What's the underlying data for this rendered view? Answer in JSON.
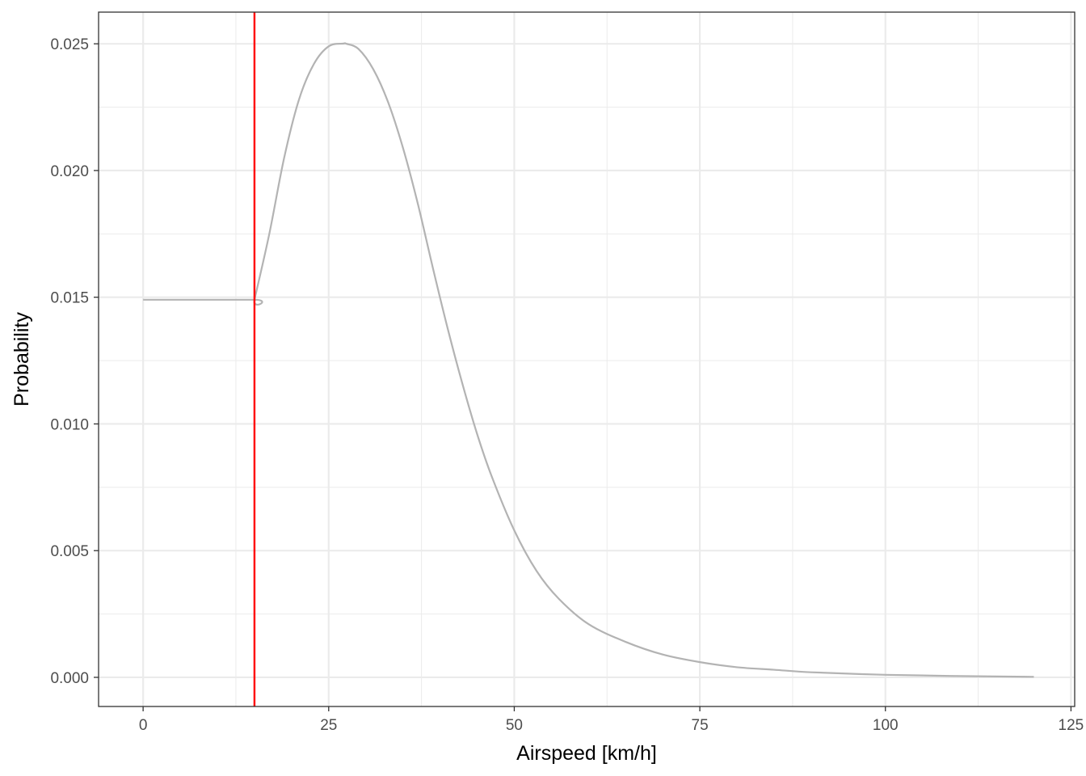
{
  "chart_data": {
    "type": "line",
    "xlabel": "Airspeed [km/h]",
    "ylabel": "Probability",
    "xlim": [
      -6,
      125.5
    ],
    "ylim": [
      -0.00115,
      0.02625
    ],
    "x_ticks": [
      0,
      25,
      50,
      75,
      100,
      125
    ],
    "x_tick_labels": [
      "0",
      "25",
      "50",
      "75",
      "100",
      "125"
    ],
    "y_ticks": [
      0.0,
      0.005,
      0.01,
      0.015,
      0.02,
      0.025
    ],
    "y_tick_labels": [
      "0.000",
      "0.005",
      "0.010",
      "0.015",
      "0.020",
      "0.025"
    ],
    "x_minor_ticks": [
      12.5,
      37.5,
      62.5,
      87.5,
      112.5
    ],
    "y_minor_ticks": [
      0.0025,
      0.0075,
      0.0125,
      0.0175,
      0.0225
    ],
    "grid": true,
    "series": [
      {
        "color": "#b3b3b3",
        "x": [
          0,
          15,
          15,
          17,
          19,
          21,
          23,
          25,
          27,
          27.4,
          29,
          31,
          33,
          35,
          37,
          39,
          41,
          43,
          45,
          47,
          50,
          53,
          56,
          60,
          65,
          70,
          75,
          80,
          85,
          90,
          100,
          110,
          120
        ],
        "y": [
          0.0149,
          0.0149,
          0.0149,
          0.0175,
          0.0205,
          0.0228,
          0.0242,
          0.0249,
          0.02501,
          0.025,
          0.0248,
          0.024,
          0.0227,
          0.0209,
          0.0187,
          0.0162,
          0.0138,
          0.0116,
          0.0096,
          0.0079,
          0.0058,
          0.0042,
          0.0031,
          0.0021,
          0.0014,
          0.0009,
          0.0006,
          0.0004,
          0.0003,
          0.0002,
          0.0001,
          5e-05,
          2e-05
        ]
      }
    ],
    "vline": {
      "x": 15,
      "color": "#ff0000"
    }
  }
}
